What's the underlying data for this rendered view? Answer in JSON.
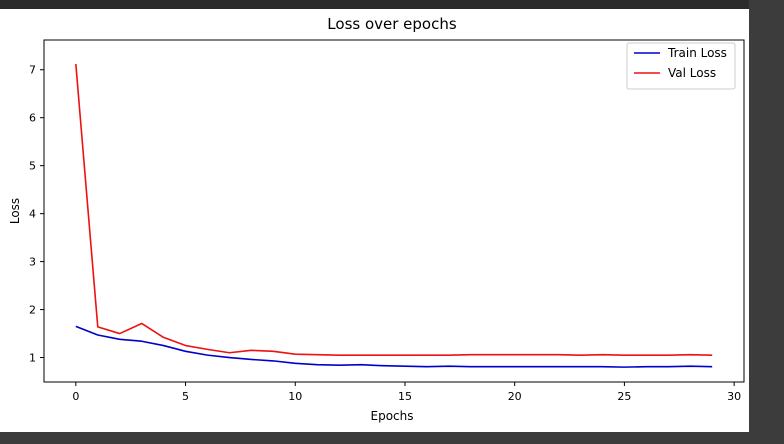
{
  "chart_data": {
    "type": "line",
    "title": "Loss over epochs",
    "xlabel": "Epochs",
    "ylabel": "Loss",
    "xlim": [
      -1.45,
      30.45
    ],
    "ylim": [
      0.49,
      7.62
    ],
    "xticks": [
      0,
      5,
      10,
      15,
      20,
      25,
      30
    ],
    "yticks": [
      1,
      2,
      3,
      4,
      5,
      6,
      7
    ],
    "grid": false,
    "legend_position": "top-right",
    "x": [
      0,
      1,
      2,
      3,
      4,
      5,
      6,
      7,
      8,
      9,
      10,
      11,
      12,
      13,
      14,
      15,
      16,
      17,
      18,
      19,
      20,
      21,
      22,
      23,
      24,
      25,
      26,
      27,
      28,
      29
    ],
    "series": [
      {
        "name": "Train Loss",
        "color": "#0000cc",
        "values": [
          1.65,
          1.47,
          1.38,
          1.34,
          1.25,
          1.13,
          1.05,
          1.0,
          0.96,
          0.93,
          0.88,
          0.85,
          0.84,
          0.85,
          0.83,
          0.82,
          0.81,
          0.82,
          0.81,
          0.81,
          0.81,
          0.81,
          0.81,
          0.81,
          0.81,
          0.8,
          0.81,
          0.81,
          0.82,
          0.81
        ]
      },
      {
        "name": "Val Loss",
        "color": "#ee1111",
        "values": [
          7.12,
          1.64,
          1.5,
          1.71,
          1.42,
          1.25,
          1.17,
          1.1,
          1.15,
          1.13,
          1.07,
          1.06,
          1.05,
          1.05,
          1.05,
          1.05,
          1.05,
          1.05,
          1.06,
          1.06,
          1.06,
          1.06,
          1.06,
          1.05,
          1.06,
          1.05,
          1.05,
          1.05,
          1.06,
          1.05
        ]
      }
    ]
  }
}
